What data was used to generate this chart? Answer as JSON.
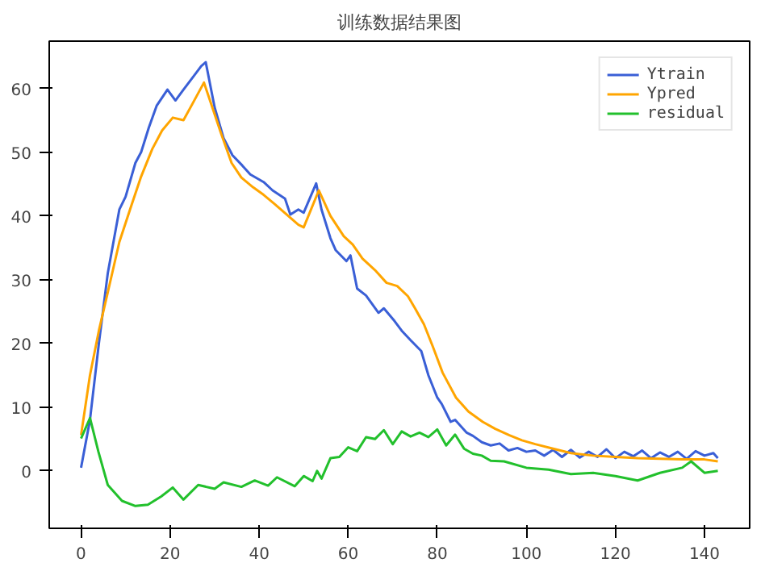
{
  "chart_data": {
    "type": "line",
    "title": "训练数据结果图",
    "xlim": [
      -7.15,
      150.15
    ],
    "ylim": [
      -9,
      67.4
    ],
    "xticks": [
      0,
      20,
      40,
      60,
      80,
      100,
      120,
      140
    ],
    "yticks": [
      0,
      10,
      20,
      30,
      40,
      50,
      60
    ],
    "grid": false,
    "legend": "top right",
    "line_style": "solid",
    "marker": "none",
    "series": [
      {
        "name": "Ytrain",
        "color": "#3a5fd6",
        "x": [
          0,
          2,
          4,
          6,
          8.6,
          10,
          12.2,
          13.5,
          15.2,
          17,
          19.4,
          21.2,
          23,
          25.4,
          27,
          28,
          30,
          32,
          34,
          36.2,
          38,
          41,
          43,
          45.8,
          47,
          48.8,
          50,
          52.8,
          54,
          56,
          57.2,
          59.6,
          60.5,
          62,
          64,
          66.8,
          68,
          70.4,
          72,
          74,
          76.4,
          78,
          80,
          81,
          83,
          84,
          86.6,
          88,
          90,
          92,
          94,
          96,
          98,
          100,
          102,
          104,
          106,
          108,
          110,
          112,
          114,
          116,
          118,
          120,
          122,
          124,
          126,
          128,
          130,
          132,
          134,
          136,
          138,
          140,
          142,
          143
        ],
        "values": [
          0.5,
          8,
          20,
          31,
          41,
          43,
          48.3,
          50,
          53.8,
          57.3,
          59.8,
          58.1,
          59.8,
          62,
          63.5,
          64.1,
          57,
          52.2,
          49.5,
          47.9,
          46.5,
          45.3,
          44,
          42.7,
          40.2,
          41,
          40.5,
          45.1,
          41,
          36.5,
          34.6,
          32.9,
          33.8,
          28.6,
          27.5,
          24.8,
          25.5,
          23.5,
          22,
          20.5,
          18.8,
          15,
          11.5,
          10.5,
          7.7,
          8,
          6,
          5.5,
          4.5,
          4,
          4.3,
          3.2,
          3.6,
          3,
          3.2,
          2.4,
          3.3,
          2.2,
          3.3,
          2.1,
          3,
          2.2,
          3.4,
          2,
          3,
          2.3,
          3.2,
          2,
          2.9,
          2.2,
          3,
          1.9,
          3.1,
          2.4,
          2.8,
          2
        ]
      },
      {
        "name": "Ypred",
        "color": "#ffa500",
        "x": [
          0,
          2,
          4,
          6,
          8.6,
          11,
          13.4,
          16,
          18.2,
          20.6,
          23,
          24.8,
          27.6,
          29,
          31.4,
          33.8,
          36,
          38.6,
          41,
          43.4,
          46,
          48.8,
          50,
          53.4,
          56,
          59,
          61,
          63.2,
          66,
          68.6,
          71,
          73.4,
          75,
          77,
          79,
          81.2,
          84.2,
          87,
          90.2,
          93,
          96.2,
          99,
          102,
          106,
          110,
          115,
          120,
          125,
          130,
          135,
          140,
          143
        ],
        "values": [
          5.6,
          15,
          22,
          28,
          35.9,
          41,
          46,
          50.5,
          53.4,
          55.4,
          55,
          57.3,
          60.9,
          58,
          53,
          48.3,
          46,
          44.5,
          43.3,
          41.9,
          40.3,
          38.6,
          38.2,
          44,
          40,
          36.8,
          35.5,
          33.3,
          31.5,
          29.5,
          29,
          27.4,
          25.5,
          23,
          19.5,
          15.4,
          11.5,
          9.3,
          7.7,
          6.6,
          5.6,
          4.8,
          4.2,
          3.5,
          2.8,
          2.4,
          2.2,
          2,
          1.9,
          1.8,
          1.8,
          1.5
        ]
      },
      {
        "name": "residual",
        "color": "#22c02c",
        "x": [
          0,
          2,
          3.9,
          6,
          9.2,
          12.2,
          15,
          18,
          20.6,
          23,
          26.3,
          30,
          32,
          36,
          39,
          42,
          44,
          48,
          50,
          52,
          53,
          54,
          56,
          58,
          60,
          62,
          64,
          66,
          68,
          70,
          72,
          74,
          76,
          78,
          80,
          82,
          84,
          86,
          88,
          90,
          92,
          95,
          100,
          105,
          110,
          115,
          120,
          125,
          130,
          135,
          137,
          140,
          143
        ],
        "values": [
          5.1,
          8.3,
          3,
          -2.2,
          -4.7,
          -5.5,
          -5.3,
          -4,
          -2.6,
          -4.5,
          -2.2,
          -2.8,
          -1.8,
          -2.5,
          -1.5,
          -2.3,
          -1,
          -2.4,
          -0.8,
          -1.6,
          0,
          -1.2,
          2,
          2.2,
          3.7,
          3.1,
          5.3,
          5,
          6.4,
          4.2,
          6.2,
          5.4,
          6,
          5.3,
          6.5,
          4,
          5.7,
          3.5,
          2.7,
          2.4,
          1.6,
          1.5,
          0.5,
          0.2,
          -0.5,
          -0.3,
          -0.8,
          -1.5,
          -0.3,
          0.5,
          1.5,
          -0.3,
          0
        ]
      }
    ]
  }
}
